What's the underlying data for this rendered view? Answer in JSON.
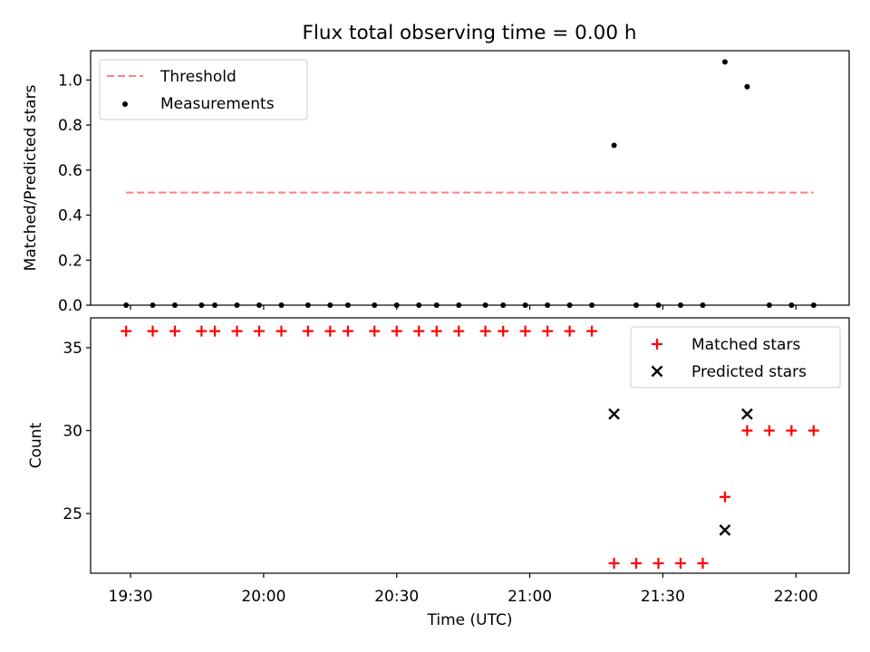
{
  "figure": {
    "title": "Flux total observing time = 0.00 h"
  },
  "chart_data": [
    {
      "type": "scatter",
      "title": "Flux total observing time = 0.00 h",
      "xlabel": "",
      "ylabel": "Matched/Predicted stars",
      "ylim": [
        0,
        1.13
      ],
      "yticks": [
        "0.0",
        "0.2",
        "0.4",
        "0.6",
        "0.8",
        "1.0"
      ],
      "legend": {
        "position": "top-left",
        "entries": [
          "Threshold",
          "Measurements"
        ]
      },
      "threshold": {
        "name": "Threshold",
        "value": 0.5,
        "x_range": [
          "19:29",
          "22:04"
        ],
        "color": "#ff7f7f",
        "style": "dashed"
      },
      "series": [
        {
          "name": "Measurements",
          "marker": "dot",
          "color": "#000000",
          "x": [
            "19:29",
            "19:35",
            "19:40",
            "19:46",
            "19:49",
            "19:54",
            "19:59",
            "20:04",
            "20:10",
            "20:15",
            "20:19",
            "20:25",
            "20:30",
            "20:35",
            "20:39",
            "20:44",
            "20:50",
            "20:54",
            "20:59",
            "21:04",
            "21:09",
            "21:14",
            "21:19",
            "21:24",
            "21:29",
            "21:34",
            "21:39",
            "21:44",
            "21:49",
            "21:54",
            "21:59",
            "22:04"
          ],
          "y": [
            0,
            0,
            0,
            0,
            0,
            0,
            0,
            0,
            0,
            0,
            0,
            0,
            0,
            0,
            0,
            0,
            0,
            0,
            0,
            0,
            0,
            0,
            0.71,
            0,
            0,
            0,
            0,
            1.08,
            0.97,
            0,
            0,
            0
          ]
        }
      ]
    },
    {
      "type": "scatter",
      "xlabel": "Time (UTC)",
      "ylabel": "Count",
      "ylim": [
        21.4,
        36.8
      ],
      "yticks": [
        "25",
        "30",
        "35"
      ],
      "xticks": [
        "19:30",
        "20:00",
        "20:30",
        "21:00",
        "21:30",
        "22:00"
      ],
      "xlim": [
        "19:21",
        "22:12"
      ],
      "legend": {
        "position": "top-right",
        "entries": [
          "Matched stars",
          "Predicted stars"
        ]
      },
      "series": [
        {
          "name": "Matched stars",
          "marker": "plus",
          "color": "#ff0000",
          "x": [
            "19:29",
            "19:35",
            "19:40",
            "19:46",
            "19:49",
            "19:54",
            "19:59",
            "20:04",
            "20:10",
            "20:15",
            "20:19",
            "20:25",
            "20:30",
            "20:35",
            "20:39",
            "20:44",
            "20:50",
            "20:54",
            "20:59",
            "21:04",
            "21:09",
            "21:14",
            "21:19",
            "21:24",
            "21:29",
            "21:34",
            "21:39",
            "21:44",
            "21:49",
            "21:54",
            "21:59",
            "22:04"
          ],
          "y": [
            36,
            36,
            36,
            36,
            36,
            36,
            36,
            36,
            36,
            36,
            36,
            36,
            36,
            36,
            36,
            36,
            36,
            36,
            36,
            36,
            36,
            36,
            22,
            22,
            22,
            22,
            22,
            26,
            30,
            30,
            30,
            30
          ]
        },
        {
          "name": "Predicted stars",
          "marker": "x",
          "color": "#000000",
          "x": [
            "21:19",
            "21:44",
            "21:49"
          ],
          "y": [
            31,
            24,
            31
          ]
        }
      ]
    }
  ]
}
